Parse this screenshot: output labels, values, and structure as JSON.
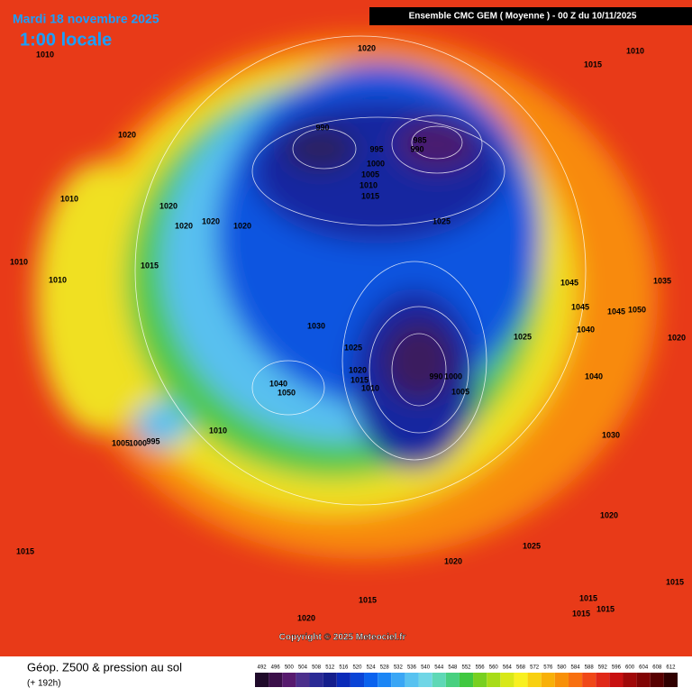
{
  "header": {
    "date": "Mardi 18 novembre 2025",
    "local_time": "1:00 locale",
    "model": "Ensemble CMC GEM  ( Moyenne )  -  00 Z du 10/11/2025"
  },
  "map": {
    "isobar_labels": [
      "1010",
      "1020",
      "1010",
      "1015",
      "1020",
      "990",
      "985",
      "990",
      "995",
      "1000",
      "1005",
      "1010",
      "1015",
      "1010",
      "1020",
      "1020",
      "1020",
      "1020",
      "1025",
      "1010",
      "1015",
      "1010",
      "1045",
      "1035",
      "1045",
      "1045",
      "1050",
      "1030",
      "1040",
      "1025",
      "1020",
      "1025",
      "1020",
      "990",
      "1000",
      "1015",
      "1010",
      "1040",
      "1040",
      "1050",
      "1005",
      "1010",
      "1030",
      "1005",
      "1000",
      "995",
      "1020",
      "1015",
      "1025",
      "1020",
      "1015",
      "1015",
      "1015",
      "1015",
      "1015",
      "1020"
    ],
    "copyright": "Copyright © 2025 Meteociel.fr"
  },
  "footer": {
    "title": "Géop. Z500 & pression au sol",
    "lead": "(+ 192h)"
  },
  "colorbar": {
    "ticks": [
      492,
      496,
      500,
      504,
      508,
      512,
      516,
      520,
      524,
      528,
      532,
      536,
      540,
      544,
      548,
      552,
      556,
      560,
      564,
      568,
      572,
      576,
      580,
      584,
      588,
      592,
      596,
      600,
      604,
      608,
      612
    ],
    "colors": [
      "#1f0a2a",
      "#3b0f49",
      "#571a6e",
      "#4c2f8c",
      "#2a2a95",
      "#141e8c",
      "#0a2ab8",
      "#0a44d6",
      "#0a62ee",
      "#1c86f5",
      "#3aa6f5",
      "#58c2f0",
      "#70d6e6",
      "#5ed8b6",
      "#48d080",
      "#40c840",
      "#78d020",
      "#a8dc18",
      "#d8e818",
      "#f8f020",
      "#f8d010",
      "#f8b008",
      "#f89008",
      "#f87010",
      "#f04818",
      "#e02818",
      "#c81010",
      "#a00808",
      "#800404",
      "#580000",
      "#300000"
    ]
  }
}
